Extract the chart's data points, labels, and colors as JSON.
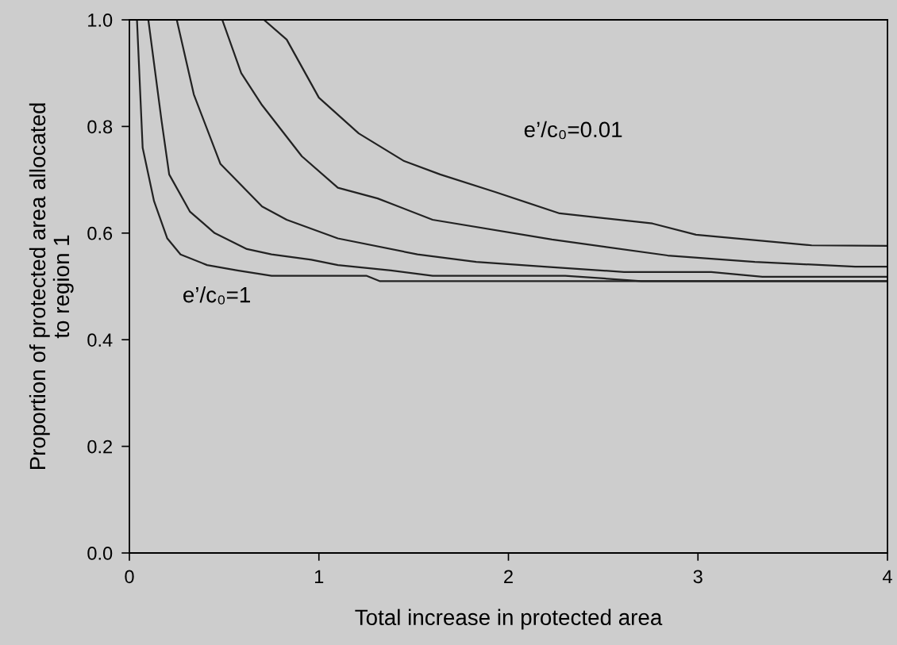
{
  "chart_data": {
    "type": "line",
    "xlabel": "Total increase in protected area",
    "ylabel": "Proportion of protected area allocated\nto region 1",
    "xlim": [
      0,
      4
    ],
    "ylim": [
      0,
      1.0
    ],
    "xticks": [
      0,
      1,
      2,
      3,
      4
    ],
    "yticks": [
      {
        "value": 0,
        "label": "0.0"
      },
      {
        "value": 0.2,
        "label": "0.2"
      },
      {
        "value": 0.4,
        "label": "0.4"
      },
      {
        "value": 0.6,
        "label": "0.6"
      },
      {
        "value": 0.8,
        "label": "0.8"
      },
      {
        "value": 1.0,
        "label": "1.0"
      }
    ],
    "grid": false,
    "legend": false,
    "marker": "none",
    "line_style": "solid",
    "series": [
      {
        "color": "#222222",
        "x": [
          0,
          0.04,
          0.07,
          0.13,
          0.2,
          0.27,
          0.41,
          0.57,
          0.75,
          1.25,
          1.32,
          4
        ],
        "values": [
          1.0,
          1.0,
          0.76,
          0.66,
          0.59,
          0.56,
          0.54,
          0.53,
          0.52,
          0.52,
          0.51,
          0.51
        ]
      },
      {
        "color": "#222222",
        "x": [
          0,
          0.1,
          0.17,
          0.21,
          0.32,
          0.45,
          0.62,
          0.75,
          0.96,
          1.1,
          1.38,
          1.6,
          2.3,
          2.7,
          4
        ],
        "values": [
          1.0,
          1.0,
          0.81,
          0.71,
          0.64,
          0.6,
          0.57,
          0.56,
          0.55,
          0.54,
          0.53,
          0.52,
          0.52,
          0.51,
          0.51
        ]
      },
      {
        "color": "#222222",
        "x": [
          0,
          0.25,
          0.34,
          0.48,
          0.7,
          0.83,
          1.1,
          1.52,
          1.83,
          2.19,
          2.61,
          3.07,
          3.34,
          4
        ],
        "values": [
          1.0,
          1.0,
          0.86,
          0.73,
          0.65,
          0.625,
          0.59,
          0.56,
          0.546,
          0.537,
          0.527,
          0.527,
          0.518,
          0.518
        ]
      },
      {
        "color": "#222222",
        "x": [
          0,
          0.49,
          0.59,
          0.7,
          0.91,
          1.1,
          1.31,
          1.6,
          2.23,
          2.84,
          3.3,
          3.83,
          4
        ],
        "values": [
          1.0,
          1.0,
          0.9,
          0.84,
          0.744,
          0.685,
          0.665,
          0.625,
          0.588,
          0.558,
          0.546,
          0.537,
          0.537
        ]
      },
      {
        "color": "#222222",
        "x": [
          0,
          0.71,
          0.83,
          1.0,
          1.21,
          1.45,
          1.64,
          1.93,
          2.27,
          2.76,
          2.99,
          3.6,
          4
        ],
        "values": [
          1.0,
          1.0,
          0.963,
          0.854,
          0.787,
          0.735,
          0.71,
          0.677,
          0.637,
          0.618,
          0.597,
          0.577,
          0.576
        ]
      }
    ],
    "annotations": [
      "e’/c₀=0.01",
      "e’/c₀=1"
    ]
  }
}
